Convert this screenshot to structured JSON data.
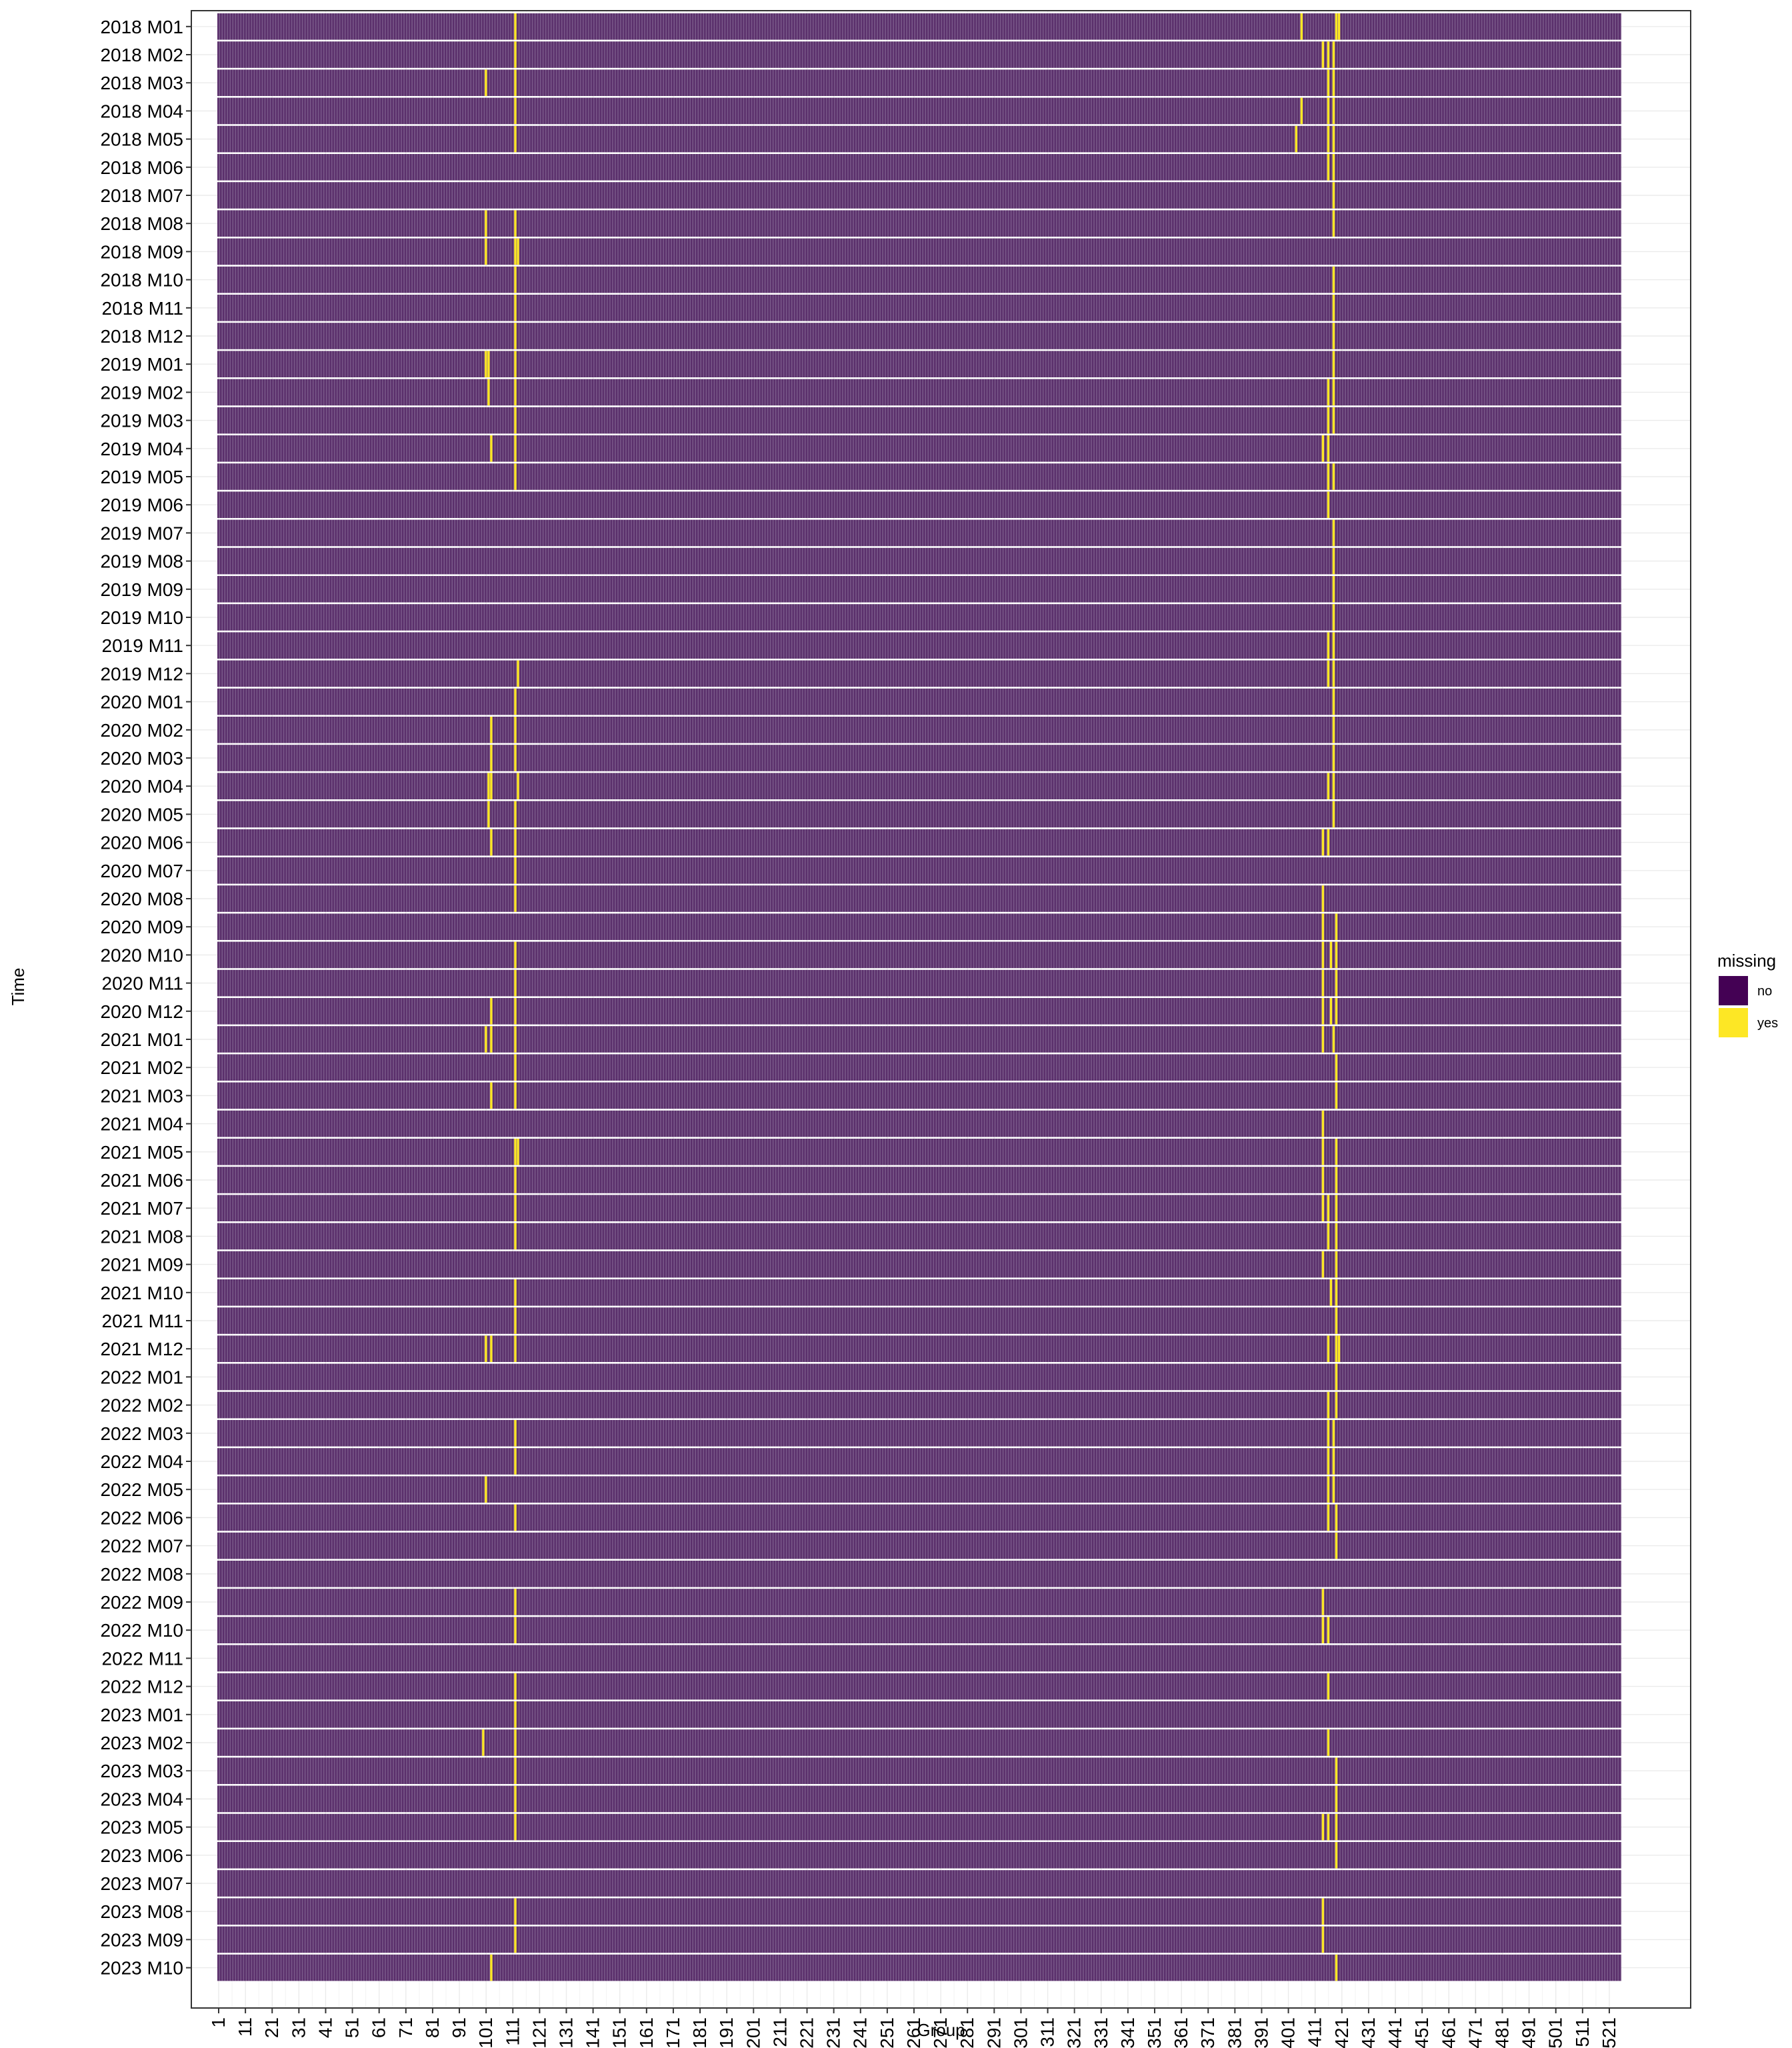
{
  "chart_data": {
    "type": "heatmap",
    "xlabel": "Group",
    "ylabel": "Time",
    "x_ticks": [
      1,
      11,
      21,
      31,
      41,
      51,
      61,
      71,
      81,
      91,
      101,
      111,
      121,
      131,
      141,
      151,
      161,
      171,
      181,
      191,
      201,
      211,
      221,
      231,
      241,
      251,
      261,
      271,
      281,
      291,
      301,
      311,
      321,
      331,
      341,
      351,
      361,
      371,
      381,
      391,
      401,
      411,
      421,
      431,
      441,
      451,
      461,
      471,
      481,
      491,
      501,
      511,
      521
    ],
    "x_range": [
      1,
      525
    ],
    "y_categories": [
      "2018 M01",
      "2018 M02",
      "2018 M03",
      "2018 M04",
      "2018 M05",
      "2018 M06",
      "2018 M07",
      "2018 M08",
      "2018 M09",
      "2018 M10",
      "2018 M11",
      "2018 M12",
      "2019 M01",
      "2019 M02",
      "2019 M03",
      "2019 M04",
      "2019 M05",
      "2019 M06",
      "2019 M07",
      "2019 M08",
      "2019 M09",
      "2019 M10",
      "2019 M11",
      "2019 M12",
      "2020 M01",
      "2020 M02",
      "2020 M03",
      "2020 M04",
      "2020 M05",
      "2020 M06",
      "2020 M07",
      "2020 M08",
      "2020 M09",
      "2020 M10",
      "2020 M11",
      "2020 M12",
      "2021 M01",
      "2021 M02",
      "2021 M03",
      "2021 M04",
      "2021 M05",
      "2021 M06",
      "2021 M07",
      "2021 M08",
      "2021 M09",
      "2021 M10",
      "2021 M11",
      "2021 M12",
      "2022 M01",
      "2022 M02",
      "2022 M03",
      "2022 M04",
      "2022 M05",
      "2022 M06",
      "2022 M07",
      "2022 M08",
      "2022 M09",
      "2022 M10",
      "2022 M11",
      "2022 M12",
      "2023 M01",
      "2023 M02",
      "2023 M03",
      "2023 M04",
      "2023 M05",
      "2023 M06",
      "2023 M07",
      "2023 M08",
      "2023 M09",
      "2023 M10"
    ],
    "legend": {
      "title": "missing",
      "position": "right",
      "items": [
        {
          "label": "no",
          "color": "#440154"
        },
        {
          "label": "yes",
          "color": "#FDE725"
        }
      ]
    },
    "missing_cells": {
      "2018 M01": [
        112,
        406,
        419,
        420
      ],
      "2018 M02": [
        112,
        414,
        416,
        418
      ],
      "2018 M03": [
        101,
        112,
        416,
        418
      ],
      "2018 M04": [
        112,
        406,
        416,
        418
      ],
      "2018 M05": [
        112,
        404,
        416,
        418
      ],
      "2018 M06": [
        416,
        418
      ],
      "2018 M07": [
        418
      ],
      "2018 M08": [
        101,
        112,
        418
      ],
      "2018 M09": [
        101,
        112,
        113
      ],
      "2018 M10": [
        112,
        418
      ],
      "2018 M11": [
        112,
        418
      ],
      "2018 M12": [
        112,
        418
      ],
      "2019 M01": [
        101,
        102,
        112,
        418
      ],
      "2019 M02": [
        102,
        112,
        416,
        418
      ],
      "2019 M03": [
        112,
        416,
        418
      ],
      "2019 M04": [
        103,
        112,
        414,
        416
      ],
      "2019 M05": [
        112,
        416,
        418
      ],
      "2019 M06": [
        416
      ],
      "2019 M07": [
        418
      ],
      "2019 M08": [
        418
      ],
      "2019 M09": [
        418
      ],
      "2019 M10": [
        418
      ],
      "2019 M11": [
        416,
        418
      ],
      "2019 M12": [
        113,
        416,
        418
      ],
      "2020 M01": [
        112,
        418
      ],
      "2020 M02": [
        103,
        112,
        418
      ],
      "2020 M03": [
        103,
        112,
        418
      ],
      "2020 M04": [
        102,
        103,
        113,
        416,
        418
      ],
      "2020 M05": [
        102,
        112,
        418
      ],
      "2020 M06": [
        103,
        112,
        414,
        416
      ],
      "2020 M07": [
        112
      ],
      "2020 M08": [
        112,
        414
      ],
      "2020 M09": [
        414,
        419
      ],
      "2020 M10": [
        112,
        414,
        417,
        419
      ],
      "2020 M11": [
        112,
        414,
        419
      ],
      "2020 M12": [
        103,
        112,
        414,
        417,
        419
      ],
      "2021 M01": [
        101,
        103,
        112,
        414,
        418
      ],
      "2021 M02": [
        112,
        419
      ],
      "2021 M03": [
        103,
        112,
        419
      ],
      "2021 M04": [
        414
      ],
      "2021 M05": [
        112,
        113,
        414,
        419
      ],
      "2021 M06": [
        112,
        414,
        419
      ],
      "2021 M07": [
        112,
        414,
        416,
        419
      ],
      "2021 M08": [
        112,
        416,
        419
      ],
      "2021 M09": [
        414,
        419
      ],
      "2021 M10": [
        112,
        417,
        419
      ],
      "2021 M11": [
        112,
        419
      ],
      "2021 M12": [
        101,
        103,
        112,
        416,
        419,
        420
      ],
      "2022 M01": [
        419
      ],
      "2022 M02": [
        416,
        419
      ],
      "2022 M03": [
        112,
        416,
        418
      ],
      "2022 M04": [
        112,
        416,
        418
      ],
      "2022 M05": [
        101,
        416,
        418
      ],
      "2022 M06": [
        112,
        416,
        419
      ],
      "2022 M07": [
        419
      ],
      "2022 M08": [],
      "2022 M09": [
        112,
        414
      ],
      "2022 M10": [
        112,
        414,
        416
      ],
      "2022 M11": [],
      "2022 M12": [
        112,
        416
      ],
      "2023 M01": [
        112
      ],
      "2023 M02": [
        100,
        112,
        416
      ],
      "2023 M03": [
        112,
        419
      ],
      "2023 M04": [
        112,
        419
      ],
      "2023 M05": [
        112,
        414,
        416,
        419
      ],
      "2023 M06": [
        419
      ],
      "2023 M07": [],
      "2023 M08": [
        112,
        414
      ],
      "2023 M09": [
        112,
        414
      ],
      "2023 M10": [
        103,
        419
      ]
    },
    "grid": true
  }
}
